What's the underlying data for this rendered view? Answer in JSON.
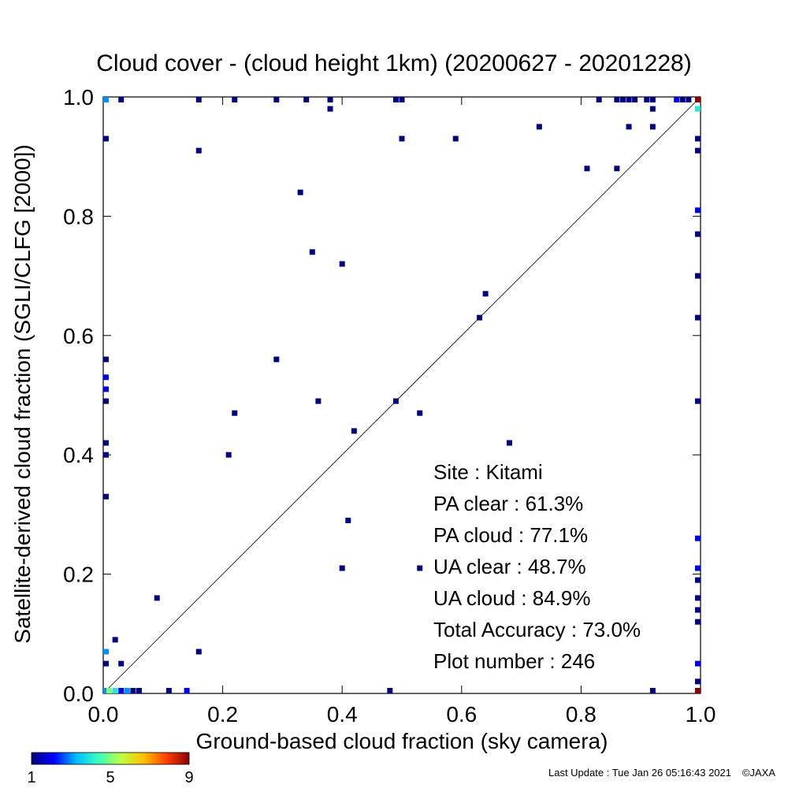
{
  "chart_data": {
    "type": "scatter",
    "title": "Cloud cover - (cloud height 1km)  (20200627 - 20201228)",
    "xlabel": "Ground-based cloud fraction (sky camera)",
    "ylabel": "Satellite-derived cloud fraction (SGLI/CLFG [2000])",
    "xlim": [
      0.0,
      1.0
    ],
    "ylim": [
      0.0,
      1.0
    ],
    "x_ticks": [
      "0.0",
      "0.2",
      "0.4",
      "0.6",
      "0.8",
      "1.0"
    ],
    "y_ticks": [
      "0.0",
      "0.2",
      "0.4",
      "0.6",
      "0.8",
      "1.0"
    ],
    "reference_line": "y = x",
    "grid": false,
    "colorbar": {
      "min_label": "1",
      "mid_label": "5",
      "max_label": "9",
      "colors": [
        "#00007f",
        "#0000ff",
        "#00bfff",
        "#3fffbf",
        "#bfff3f",
        "#ffbf00",
        "#ff3f00",
        "#8b0000"
      ]
    },
    "stats": {
      "site": "Site : Kitami",
      "pa_clear": "PA clear :  61.3%",
      "pa_cloud": "PA cloud :  77.1%",
      "ua_clear": "UA clear :  48.7%",
      "ua_cloud": "UA cloud :  84.9%",
      "total_accuracy": "Total Accuracy :  73.0%",
      "plot_number": "Plot number :       246"
    },
    "points": [
      {
        "x": 0.0,
        "y": 1.0,
        "count": 3
      },
      {
        "x": 0.03,
        "y": 1.0,
        "count": 1
      },
      {
        "x": 0.16,
        "y": 1.0,
        "count": 1
      },
      {
        "x": 0.22,
        "y": 1.0,
        "count": 1
      },
      {
        "x": 0.29,
        "y": 1.0,
        "count": 1
      },
      {
        "x": 0.34,
        "y": 1.0,
        "count": 1
      },
      {
        "x": 0.38,
        "y": 1.0,
        "count": 1
      },
      {
        "x": 0.49,
        "y": 1.0,
        "count": 1
      },
      {
        "x": 0.5,
        "y": 1.0,
        "count": 1
      },
      {
        "x": 0.83,
        "y": 1.0,
        "count": 1
      },
      {
        "x": 0.86,
        "y": 1.0,
        "count": 1
      },
      {
        "x": 0.87,
        "y": 1.0,
        "count": 1
      },
      {
        "x": 0.88,
        "y": 1.0,
        "count": 1
      },
      {
        "x": 0.89,
        "y": 1.0,
        "count": 1
      },
      {
        "x": 0.91,
        "y": 1.0,
        "count": 1
      },
      {
        "x": 0.92,
        "y": 1.0,
        "count": 1
      },
      {
        "x": 0.96,
        "y": 1.0,
        "count": 2
      },
      {
        "x": 0.97,
        "y": 1.0,
        "count": 1
      },
      {
        "x": 0.98,
        "y": 1.0,
        "count": 1
      },
      {
        "x": 1.0,
        "y": 1.0,
        "count": 9
      },
      {
        "x": 0.38,
        "y": 0.98,
        "count": 1
      },
      {
        "x": 0.92,
        "y": 0.98,
        "count": 1
      },
      {
        "x": 1.0,
        "y": 0.98,
        "count": 4
      },
      {
        "x": 0.0,
        "y": 0.93,
        "count": 1
      },
      {
        "x": 0.5,
        "y": 0.93,
        "count": 1
      },
      {
        "x": 0.59,
        "y": 0.93,
        "count": 1
      },
      {
        "x": 1.0,
        "y": 0.93,
        "count": 1
      },
      {
        "x": 0.73,
        "y": 0.95,
        "count": 1
      },
      {
        "x": 0.88,
        "y": 0.95,
        "count": 1
      },
      {
        "x": 0.92,
        "y": 0.95,
        "count": 1
      },
      {
        "x": 0.16,
        "y": 0.91,
        "count": 1
      },
      {
        "x": 1.0,
        "y": 0.91,
        "count": 1
      },
      {
        "x": 0.81,
        "y": 0.88,
        "count": 1
      },
      {
        "x": 0.86,
        "y": 0.88,
        "count": 1
      },
      {
        "x": 0.33,
        "y": 0.84,
        "count": 1
      },
      {
        "x": 1.0,
        "y": 0.81,
        "count": 2
      },
      {
        "x": 1.0,
        "y": 0.77,
        "count": 1
      },
      {
        "x": 0.35,
        "y": 0.74,
        "count": 1
      },
      {
        "x": 0.4,
        "y": 0.72,
        "count": 1
      },
      {
        "x": 1.0,
        "y": 0.7,
        "count": 1
      },
      {
        "x": 0.64,
        "y": 0.67,
        "count": 1
      },
      {
        "x": 0.63,
        "y": 0.63,
        "count": 1
      },
      {
        "x": 1.0,
        "y": 0.63,
        "count": 1
      },
      {
        "x": 0.0,
        "y": 0.56,
        "count": 1
      },
      {
        "x": 0.29,
        "y": 0.56,
        "count": 1
      },
      {
        "x": 0.0,
        "y": 0.53,
        "count": 2
      },
      {
        "x": 0.0,
        "y": 0.51,
        "count": 2
      },
      {
        "x": 0.0,
        "y": 0.49,
        "count": 1
      },
      {
        "x": 0.36,
        "y": 0.49,
        "count": 1
      },
      {
        "x": 0.49,
        "y": 0.49,
        "count": 1
      },
      {
        "x": 1.0,
        "y": 0.49,
        "count": 1
      },
      {
        "x": 0.22,
        "y": 0.47,
        "count": 1
      },
      {
        "x": 0.53,
        "y": 0.47,
        "count": 1
      },
      {
        "x": 0.42,
        "y": 0.44,
        "count": 1
      },
      {
        "x": 0.0,
        "y": 0.42,
        "count": 1
      },
      {
        "x": 0.68,
        "y": 0.42,
        "count": 1
      },
      {
        "x": 0.0,
        "y": 0.4,
        "count": 1
      },
      {
        "x": 0.21,
        "y": 0.4,
        "count": 1
      },
      {
        "x": 0.0,
        "y": 0.33,
        "count": 1
      },
      {
        "x": 0.41,
        "y": 0.29,
        "count": 1
      },
      {
        "x": 1.0,
        "y": 0.26,
        "count": 2
      },
      {
        "x": 0.4,
        "y": 0.21,
        "count": 1
      },
      {
        "x": 0.53,
        "y": 0.21,
        "count": 1
      },
      {
        "x": 1.0,
        "y": 0.21,
        "count": 2
      },
      {
        "x": 1.0,
        "y": 0.19,
        "count": 1
      },
      {
        "x": 0.09,
        "y": 0.16,
        "count": 1
      },
      {
        "x": 1.0,
        "y": 0.16,
        "count": 1
      },
      {
        "x": 1.0,
        "y": 0.14,
        "count": 1
      },
      {
        "x": 1.0,
        "y": 0.12,
        "count": 1
      },
      {
        "x": 0.02,
        "y": 0.09,
        "count": 1
      },
      {
        "x": 0.0,
        "y": 0.07,
        "count": 3
      },
      {
        "x": 0.16,
        "y": 0.07,
        "count": 1
      },
      {
        "x": 0.0,
        "y": 0.05,
        "count": 1
      },
      {
        "x": 0.03,
        "y": 0.05,
        "count": 1
      },
      {
        "x": 1.0,
        "y": 0.05,
        "count": 2
      },
      {
        "x": 1.0,
        "y": 0.02,
        "count": 1
      },
      {
        "x": 0.0,
        "y": 0.0,
        "count": 3
      },
      {
        "x": 0.01,
        "y": 0.0,
        "count": 5
      },
      {
        "x": 0.02,
        "y": 0.0,
        "count": 4
      },
      {
        "x": 0.03,
        "y": 0.0,
        "count": 2
      },
      {
        "x": 0.04,
        "y": 0.0,
        "count": 3
      },
      {
        "x": 0.05,
        "y": 0.0,
        "count": 1
      },
      {
        "x": 0.06,
        "y": 0.0,
        "count": 1
      },
      {
        "x": 0.11,
        "y": 0.0,
        "count": 1
      },
      {
        "x": 0.14,
        "y": 0.0,
        "count": 2
      },
      {
        "x": 0.48,
        "y": 0.0,
        "count": 1
      },
      {
        "x": 0.92,
        "y": 0.0,
        "count": 1
      },
      {
        "x": 1.0,
        "y": 0.0,
        "count": 9
      }
    ]
  },
  "footer": {
    "last_update": "Last Update : Tue Jan 26 05:16:43 2021",
    "copyright": "©JAXA"
  }
}
